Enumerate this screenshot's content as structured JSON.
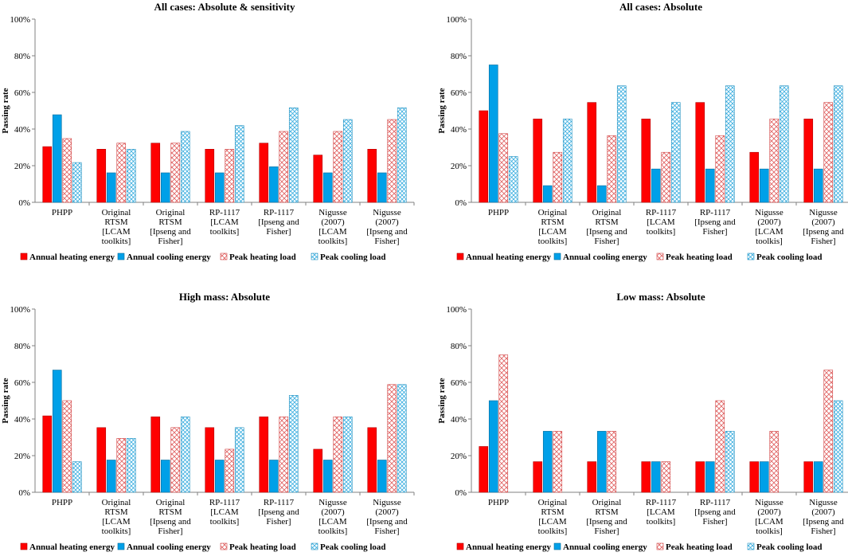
{
  "chart_data": [
    {
      "type": "bar",
      "title": "All cases: Absolute & sensitivity",
      "ylabel": "Passing rate",
      "ylim": [
        0,
        100
      ],
      "yticks": [
        "0%",
        "20%",
        "40%",
        "60%",
        "80%",
        "100%"
      ],
      "categories": [
        [
          "PHPP"
        ],
        [
          "Original",
          "RTSM",
          "[LCAM",
          "toolkits]"
        ],
        [
          "Original",
          "RTSM",
          "[Ipseng and",
          "Fisher]"
        ],
        [
          "RP-1117",
          "[LCAM",
          "toolkits]"
        ],
        [
          "RP-1117",
          "[Ipseng and",
          "Fisher]"
        ],
        [
          "Nigusse",
          "(2007)",
          "[LCAM",
          "toolkits]"
        ],
        [
          "Nigusse",
          "(2007)",
          "[Ipseng and",
          "Fisher]"
        ]
      ],
      "series": [
        {
          "name": "Annual heating energy",
          "values": [
            30.4,
            29,
            32.3,
            29,
            32.3,
            25.8,
            29
          ]
        },
        {
          "name": "Annual cooling energy",
          "values": [
            47.8,
            16.1,
            16.1,
            16.1,
            19.4,
            16.1,
            16.1
          ]
        },
        {
          "name": "Peak heating load",
          "values": [
            34.8,
            32.3,
            32.3,
            29,
            38.7,
            38.7,
            45.2
          ]
        },
        {
          "name": "Peak cooling load",
          "values": [
            21.7,
            29,
            38.7,
            41.9,
            51.6,
            45.2,
            51.6
          ]
        }
      ]
    },
    {
      "type": "bar",
      "title": "All cases: Absolute",
      "ylabel": "Passing rate",
      "ylim": [
        0,
        100
      ],
      "yticks": [
        "0%",
        "20%",
        "40%",
        "60%",
        "80%",
        "100%"
      ],
      "categories": [
        [
          "PHPP"
        ],
        [
          "Original",
          "RTSM",
          "[LCAM",
          "toolkits]"
        ],
        [
          "Original",
          "RTSM",
          "[Ipseng and",
          "Fisher]"
        ],
        [
          "RP-1117",
          "[LCAM",
          "toolkits]"
        ],
        [
          "RP-1117",
          "[Ipseng and",
          "Fisher]"
        ],
        [
          "Nigusse",
          "(2007)",
          "[LCAM",
          "toolkis]"
        ],
        [
          "Nigusse",
          "(2007)",
          "[Ipseng and",
          "Fisher]"
        ]
      ],
      "series": [
        {
          "name": "Annual heating energy",
          "values": [
            50,
            45.5,
            54.5,
            45.5,
            54.5,
            27.3,
            45.5
          ]
        },
        {
          "name": "Annual cooling energy",
          "values": [
            75,
            9.1,
            9.1,
            18.2,
            18.2,
            18.2,
            18.2
          ]
        },
        {
          "name": "Peak heating load",
          "values": [
            37.5,
            27.3,
            36.4,
            27.3,
            36.4,
            45.5,
            54.5
          ]
        },
        {
          "name": "Peak cooling load",
          "values": [
            25,
            45.5,
            63.6,
            54.5,
            63.6,
            63.6,
            63.6
          ]
        }
      ]
    },
    {
      "type": "bar",
      "title": "High mass: Absolute",
      "ylabel": "Passing rate",
      "ylim": [
        0,
        100
      ],
      "yticks": [
        "0%",
        "20%",
        "40%",
        "60%",
        "80%",
        "100%"
      ],
      "categories": [
        [
          "PHPP"
        ],
        [
          "Original",
          "RTSM",
          "[LCAM",
          "toolkits]"
        ],
        [
          "Original",
          "RTSM",
          "[Ipseng and",
          "Fisher]"
        ],
        [
          "RP-1117",
          "[LCAM",
          "toolkits]"
        ],
        [
          "RP-1117",
          "[Ipseng and",
          "Fisher]"
        ],
        [
          "Nigusse",
          "(2007)",
          "[LCAM",
          "toolkits]"
        ],
        [
          "Nigusse",
          "(2007)",
          "[Ipseng and",
          "Fisher]"
        ]
      ],
      "series": [
        {
          "name": "Annual heating energy",
          "values": [
            41.7,
            35.3,
            41.2,
            35.3,
            41.2,
            23.5,
            35.3
          ]
        },
        {
          "name": "Annual cooling energy",
          "values": [
            66.7,
            17.6,
            17.6,
            17.6,
            17.6,
            17.6,
            17.6
          ]
        },
        {
          "name": "Peak heating load",
          "values": [
            50,
            29.4,
            35.3,
            23.5,
            41.2,
            41.2,
            58.8
          ]
        },
        {
          "name": "Peak cooling load",
          "values": [
            16.7,
            29.4,
            41.2,
            35.3,
            52.9,
            41.2,
            58.8
          ]
        }
      ]
    },
    {
      "type": "bar",
      "title": "Low mass: Absolute",
      "ylabel": "Passing rate",
      "ylim": [
        0,
        100
      ],
      "yticks": [
        "0%",
        "20%",
        "40%",
        "60%",
        "80%",
        "100%"
      ],
      "categories": [
        [
          "PHPP"
        ],
        [
          "Original",
          "RTSM",
          "[LCAM",
          "toolkits]"
        ],
        [
          "Original",
          "RTSM",
          "[Ipseng and",
          "Fisher]"
        ],
        [
          "RP-1117",
          "[LCAM",
          "toolkits]"
        ],
        [
          "RP-1117",
          "[Ipseng and",
          "Fisher]"
        ],
        [
          "Nigusse",
          "(2007)",
          "[LCAM",
          "toolkis]"
        ],
        [
          "Nigusse",
          "(2007)",
          "[Ipseng and",
          "Fisher]"
        ]
      ],
      "series": [
        {
          "name": "Annual heating energy",
          "values": [
            25,
            16.7,
            16.7,
            16.7,
            16.7,
            16.7,
            16.7
          ]
        },
        {
          "name": "Annual cooling energy",
          "values": [
            50,
            33.3,
            33.3,
            16.7,
            16.7,
            16.7,
            16.7
          ]
        },
        {
          "name": "Peak heating load",
          "values": [
            75,
            33.3,
            33.3,
            16.7,
            50,
            33.3,
            66.7
          ]
        },
        {
          "name": "Peak cooling load",
          "values": [
            0,
            0,
            0,
            0,
            33.3,
            0,
            50
          ]
        }
      ]
    }
  ],
  "colors": {
    "heating": "#ff0000",
    "cooling": "#00a0e8",
    "peak_heating_stroke": "#e06060",
    "peak_cooling_stroke": "#40b0e0",
    "axis": "#808080"
  }
}
